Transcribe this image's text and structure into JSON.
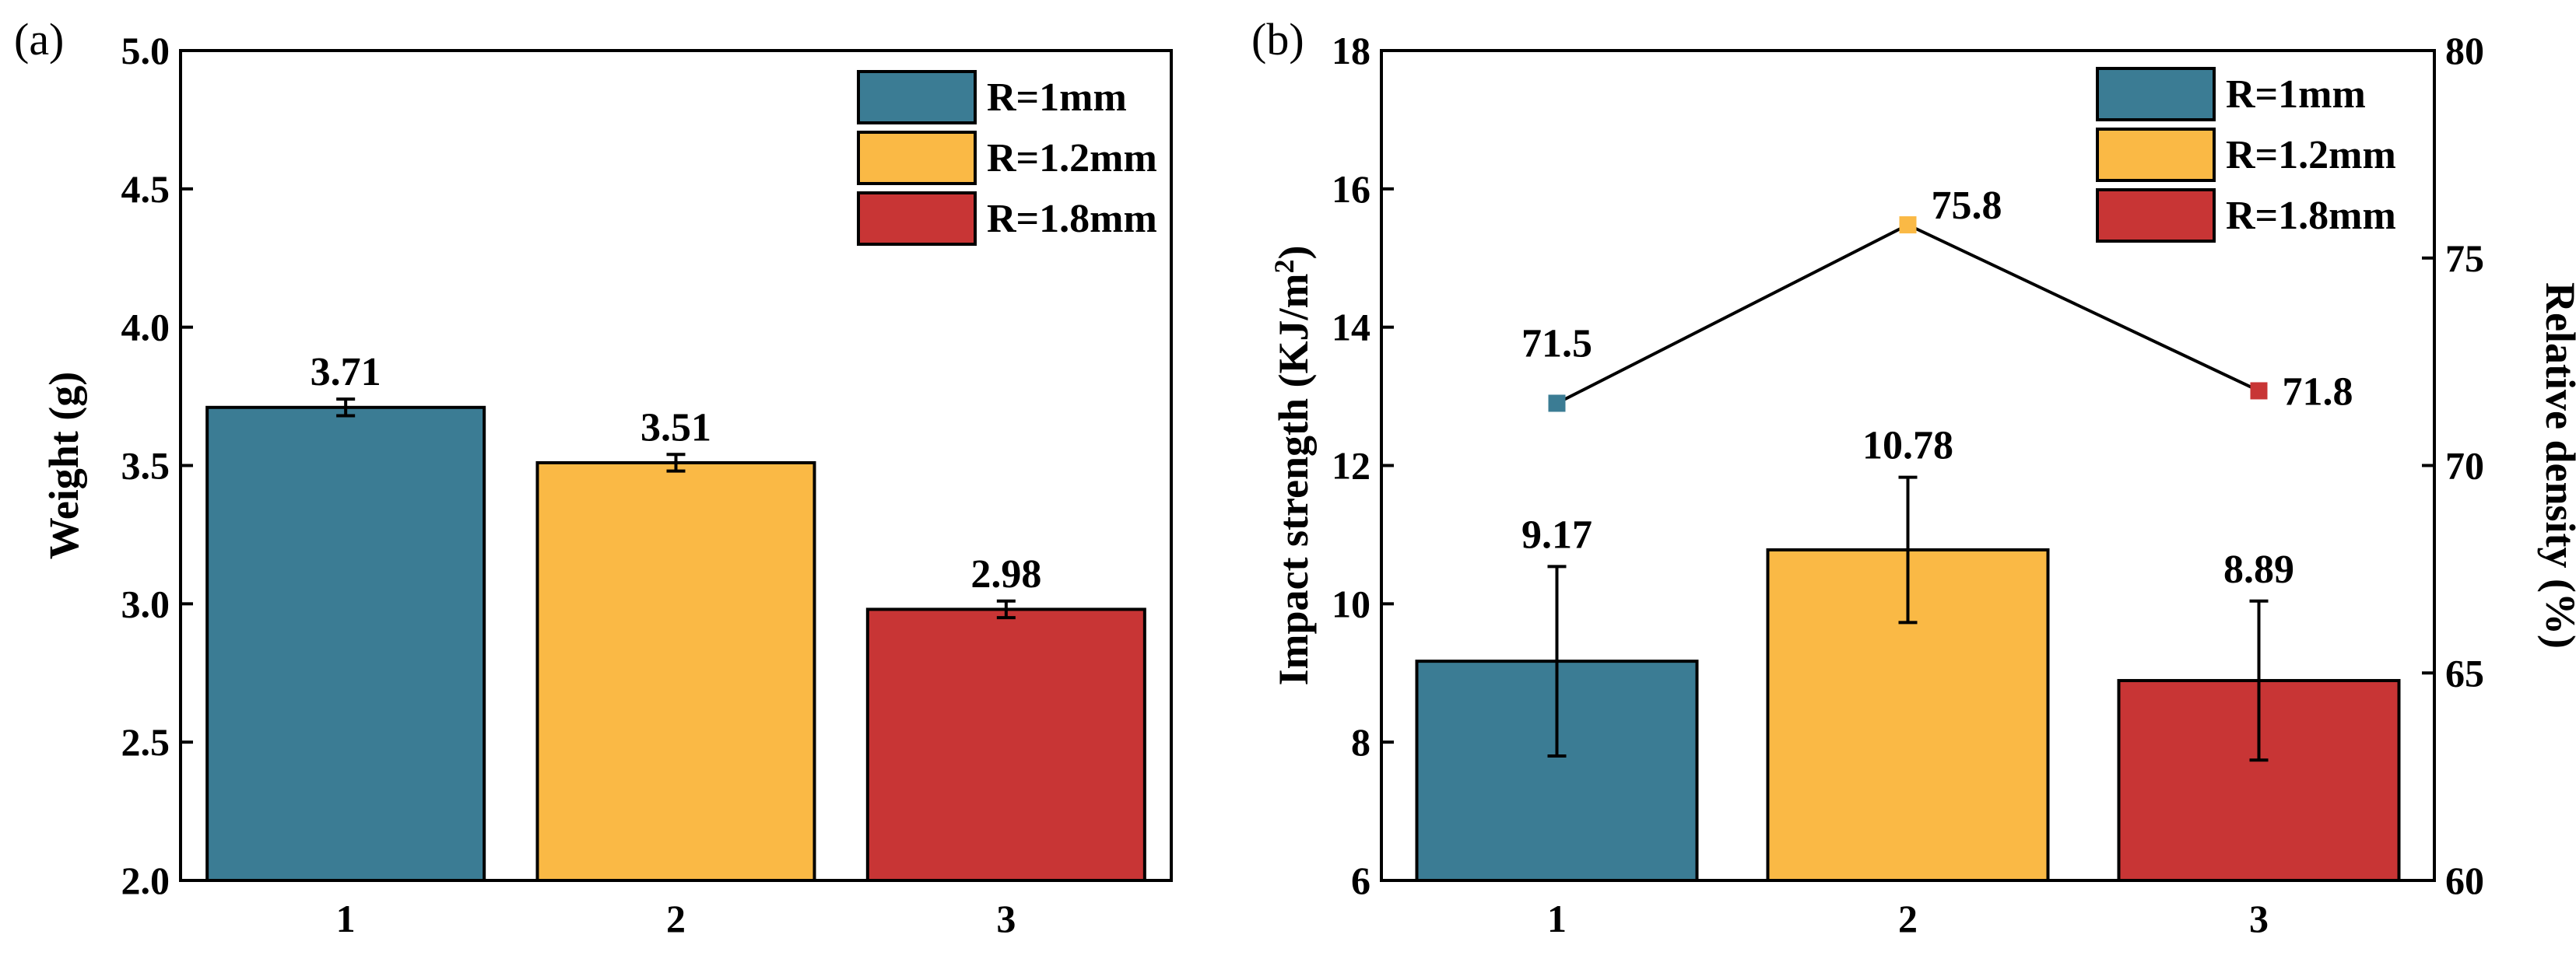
{
  "chart_data": [
    {
      "panel": "(a)",
      "type": "bar",
      "categories": [
        "1",
        "2",
        "3"
      ],
      "series": [
        {
          "name": "Weight",
          "values": [
            3.71,
            3.51,
            2.98
          ],
          "errors": [
            0.03,
            0.03,
            0.03
          ],
          "labels": [
            "3.71",
            "3.51",
            "2.98"
          ],
          "colors": [
            "#3b7c94",
            "#fab945",
            "#c83535"
          ]
        }
      ],
      "xlabel": "",
      "ylabel": "Weight (g)",
      "ylim": [
        2.0,
        5.0
      ],
      "yticks": [
        "2.0",
        "2.5",
        "3.0",
        "3.5",
        "4.0",
        "4.5",
        "5.0"
      ],
      "legend": {
        "position": "top-right",
        "entries": [
          {
            "label": "R=1mm",
            "color": "#3b7c94"
          },
          {
            "label": "R=1.2mm",
            "color": "#fab945"
          },
          {
            "label": "R=1.8mm",
            "color": "#c83535"
          }
        ]
      }
    },
    {
      "panel": "(b)",
      "type": "bar",
      "categories": [
        "1",
        "2",
        "3"
      ],
      "series": [
        {
          "name": "Impact strength",
          "axis": "left",
          "values": [
            9.17,
            10.78,
            8.89
          ],
          "errors": [
            1.37,
            1.05,
            1.15
          ],
          "labels": [
            "9.17",
            "10.78",
            "8.89"
          ],
          "colors": [
            "#3b7c94",
            "#fab945",
            "#c83535"
          ]
        },
        {
          "name": "Relative density",
          "type": "line",
          "axis": "right",
          "values": [
            71.5,
            75.8,
            71.8
          ],
          "labels": [
            "71.5",
            "75.8",
            "71.8"
          ],
          "colors": [
            "#3b7c94",
            "#fab945",
            "#c83535"
          ]
        }
      ],
      "xlabel": "",
      "ylabel_parts": [
        "Impact strength (KJ/m",
        "2",
        ")"
      ],
      "ylim": [
        6,
        18
      ],
      "yticks": [
        "6",
        "8",
        "10",
        "12",
        "14",
        "16",
        "18"
      ],
      "ylabel_right": "Relative density (%)",
      "ylim_right": [
        60,
        80
      ],
      "yticks_right": [
        "60",
        "65",
        "70",
        "75",
        "80"
      ],
      "legend": {
        "position": "top-right",
        "entries": [
          {
            "label": "R=1mm",
            "color": "#3b7c94"
          },
          {
            "label": "R=1.2mm",
            "color": "#fab945"
          },
          {
            "label": "R=1.8mm",
            "color": "#c83535"
          }
        ]
      }
    }
  ]
}
